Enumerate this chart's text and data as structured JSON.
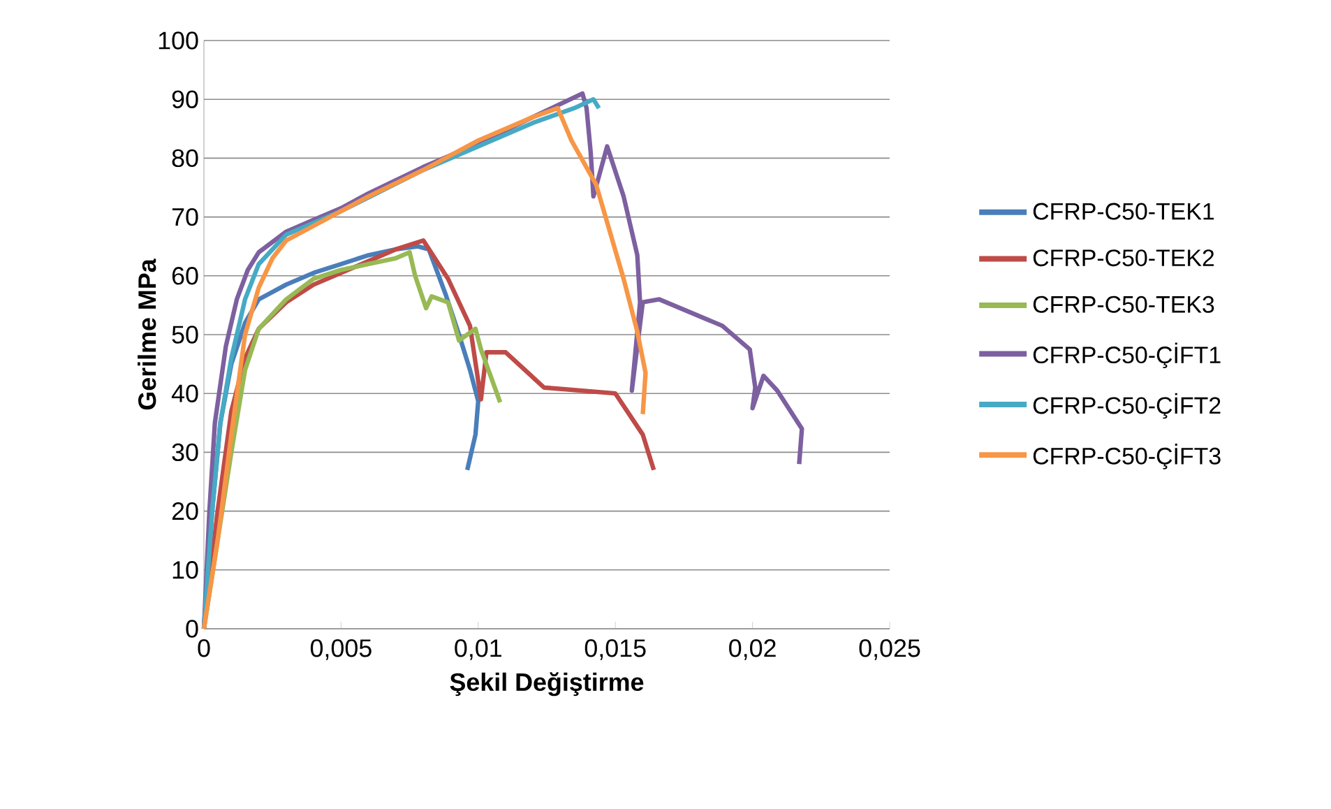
{
  "chart_data": {
    "type": "line",
    "xlabel": "Şekil Değiştirme",
    "ylabel": "Gerilme MPa",
    "xlim": [
      0,
      0.025
    ],
    "ylim": [
      0,
      100
    ],
    "xticks": [
      0,
      {
        "value": 0.005,
        "label": "0,005"
      },
      {
        "value": 0.01,
        "label": "0,01"
      },
      {
        "value": 0.015,
        "label": "0,015"
      },
      {
        "value": 0.02,
        "label": "0,02"
      },
      {
        "value": 0.025,
        "label": "0,025"
      }
    ],
    "yticks": [
      0,
      10,
      20,
      30,
      40,
      50,
      60,
      70,
      80,
      90,
      100
    ],
    "grid": "y",
    "legend": "right",
    "marker": "none",
    "line_style": "solid",
    "series": [
      {
        "name": "CFRP-C50-TEK1",
        "color": "#4a7ebb",
        "x": [
          0,
          0.0003,
          0.0006,
          0.001,
          0.0015,
          0.002,
          0.003,
          0.004,
          0.005,
          0.006,
          0.007,
          0.0078,
          0.0082,
          0.0088,
          0.0093,
          0.0097,
          0.01,
          0.0099,
          0.0096
        ],
        "values": [
          0,
          20,
          35,
          45,
          52,
          56,
          58.5,
          60.5,
          62,
          63.5,
          64.5,
          65,
          64.5,
          57,
          50,
          44,
          38.7,
          33,
          27
        ]
      },
      {
        "name": "CFRP-C50-TEK2",
        "color": "#be4b48",
        "x": [
          0,
          0.0005,
          0.001,
          0.0015,
          0.002,
          0.003,
          0.004,
          0.005,
          0.006,
          0.007,
          0.008,
          0.0089,
          0.0097,
          0.0101,
          0.0103,
          0.011,
          0.0124,
          0.015,
          0.016,
          0.0164
        ],
        "values": [
          0,
          20,
          37,
          46,
          51,
          55.5,
          58.5,
          60.5,
          62.5,
          64.5,
          66,
          59.5,
          51.5,
          39,
          47,
          47,
          41,
          40,
          33,
          27
        ]
      },
      {
        "name": "CFRP-C50-TEK3",
        "color": "#98b954",
        "x": [
          0,
          0.0005,
          0.001,
          0.0015,
          0.002,
          0.003,
          0.004,
          0.005,
          0.006,
          0.007,
          0.0075,
          0.0077,
          0.0081,
          0.0083,
          0.0089,
          0.0093,
          0.0099,
          0.0101,
          0.0108
        ],
        "values": [
          0,
          15,
          30,
          44,
          51,
          56,
          59.5,
          61,
          62,
          63,
          64,
          60,
          54.5,
          56.5,
          55.5,
          49,
          51,
          47.5,
          38.5
        ]
      },
      {
        "name": "CFRP-C50-ÇİFT1",
        "color": "#7d60a0",
        "x": [
          0,
          0.0002,
          0.0004,
          0.0008,
          0.0012,
          0.0016,
          0.002,
          0.003,
          0.004,
          0.005,
          0.006,
          0.008,
          0.01,
          0.012,
          0.0138,
          0.01395,
          0.0141,
          0.0142,
          0.0147,
          0.0153,
          0.0158,
          0.0159,
          0.0156,
          0.016,
          0.0166,
          0.0189,
          0.0199,
          0.0201,
          0.02,
          0.0204,
          0.0209,
          0.0218,
          0.0217
        ],
        "values": [
          0,
          20,
          35,
          48,
          56,
          61,
          64,
          67.5,
          69.5,
          71.5,
          74,
          78.5,
          82.5,
          87,
          91,
          88.5,
          81,
          73.5,
          82,
          73.5,
          63.5,
          55.5,
          40.5,
          55.5,
          56,
          51.5,
          47.5,
          41,
          37.5,
          43,
          40.5,
          34,
          28
        ]
      },
      {
        "name": "CFRP-C50-ÇİFT2",
        "color": "#46aac5",
        "x": [
          0,
          0.0003,
          0.0006,
          0.001,
          0.0015,
          0.002,
          0.003,
          0.005,
          0.008,
          0.01,
          0.012,
          0.0135,
          0.0142,
          0.0144
        ],
        "values": [
          0,
          20,
          35,
          46,
          56,
          62,
          67,
          71,
          78,
          82,
          86,
          88.5,
          90,
          88.5
        ]
      },
      {
        "name": "CFRP-C50-ÇİFT3",
        "color": "#f79646",
        "x": [
          0,
          0.0005,
          0.001,
          0.0015,
          0.002,
          0.0025,
          0.003,
          0.004,
          0.005,
          0.006,
          0.008,
          0.01,
          0.012,
          0.0129,
          0.0134,
          0.0143,
          0.0153,
          0.0158,
          0.0161,
          0.016
        ],
        "values": [
          0,
          15,
          33,
          50,
          58,
          63,
          66,
          68.5,
          71,
          73.5,
          78,
          83,
          87,
          88.5,
          83,
          75.5,
          59.5,
          50.5,
          43.5,
          36.5
        ]
      }
    ]
  }
}
